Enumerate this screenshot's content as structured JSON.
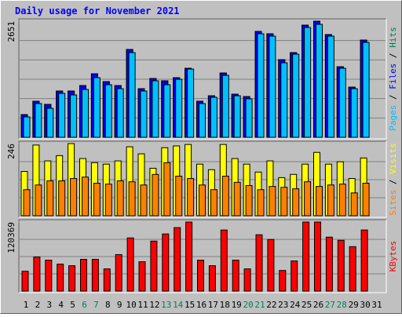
{
  "chart_data": [
    {
      "type": "bar",
      "title": "Daily usage for November 2021",
      "ylim": [
        0,
        2651
      ],
      "yticks": [
        2651
      ],
      "series": [
        {
          "name": "Hits",
          "color": "#00805C",
          "values": [
            519,
            824,
            752,
            1057,
            1057,
            1182,
            1451,
            1272,
            1182,
            2006,
            1110,
            1343,
            1290,
            1361,
            1576,
            824,
            949,
            1469,
            985,
            931,
            2418,
            2364,
            1773,
            1934,
            2561,
            2651,
            2346,
            1612,
            1146,
            2221,
            null
          ]
        },
        {
          "name": "Files",
          "color": "#0000FF",
          "values": [
            519,
            824,
            752,
            1057,
            1057,
            1182,
            1451,
            1272,
            1182,
            2006,
            1110,
            1343,
            1290,
            1361,
            1576,
            824,
            949,
            1469,
            985,
            931,
            2418,
            2364,
            1773,
            1934,
            2561,
            2651,
            2346,
            1612,
            1146,
            2221,
            null
          ]
        },
        {
          "name": "Pages",
          "color": "#00C0FF",
          "values": [
            466,
            770,
            663,
            1003,
            967,
            1093,
            1361,
            1200,
            1110,
            1934,
            1057,
            1290,
            1200,
            1325,
            1558,
            770,
            913,
            1415,
            949,
            878,
            2364,
            2310,
            1701,
            1898,
            2507,
            2579,
            2310,
            1576,
            1110,
            2167,
            null
          ]
        }
      ]
    },
    {
      "type": "bar",
      "ylim": [
        0,
        246
      ],
      "yticks": [
        246
      ],
      "series": [
        {
          "name": "Visits",
          "color": "#FFFF00",
          "values": [
            151,
            241,
            187,
            205,
            246,
            195,
            181,
            176,
            187,
            235,
            211,
            162,
            232,
            238,
            243,
            176,
            157,
            243,
            195,
            176,
            149,
            187,
            130,
            141,
            176,
            216,
            176,
            184,
            127,
            197,
            null
          ]
        },
        {
          "name": "Sites",
          "color": "#FF8000",
          "values": [
            89,
            105,
            119,
            119,
            127,
            132,
            111,
            108,
            119,
            116,
            105,
            141,
            181,
            135,
            127,
            105,
            89,
            135,
            114,
            103,
            89,
            100,
            97,
            92,
            116,
            100,
            105,
            108,
            78,
            111,
            null
          ]
        }
      ]
    },
    {
      "type": "bar",
      "ylim": [
        0,
        120369
      ],
      "yticks": [
        120369
      ],
      "categories": [
        "1",
        "2",
        "3",
        "4",
        "5",
        "6",
        "7",
        "8",
        "9",
        "10",
        "11",
        "12",
        "13",
        "14",
        "15",
        "16",
        "17",
        "18",
        "19",
        "20",
        "21",
        "22",
        "23",
        "24",
        "25",
        "26",
        "27",
        "28",
        "29",
        "30",
        "31"
      ],
      "category_colors": [
        "#000000",
        "#000000",
        "#000000",
        "#000000",
        "#000000",
        "#00805C",
        "#00805C",
        "#000000",
        "#000000",
        "#000000",
        "#000000",
        "#000000",
        "#00805C",
        "#00805C",
        "#000000",
        "#000000",
        "#000000",
        "#000000",
        "#000000",
        "#00805C",
        "#00805C",
        "#000000",
        "#000000",
        "#000000",
        "#000000",
        "#000000",
        "#00805C",
        "#00805C",
        "#000000",
        "#000000",
        "#000000"
      ],
      "series": [
        {
          "name": "KBytes",
          "color": "#FF0000",
          "values": [
            34590,
            59495,
            53960,
            47042,
            44275,
            55344,
            55344,
            38741,
            63646,
            92701,
            51193,
            87167,
            99619,
            110688,
            120369,
            53960,
            44275,
            106537,
            53960,
            38741,
            98236,
            89934,
            35974,
            52577,
            120369,
            120369,
            94085,
            88550,
            77482,
            106537,
            null
          ]
        }
      ]
    }
  ]
}
